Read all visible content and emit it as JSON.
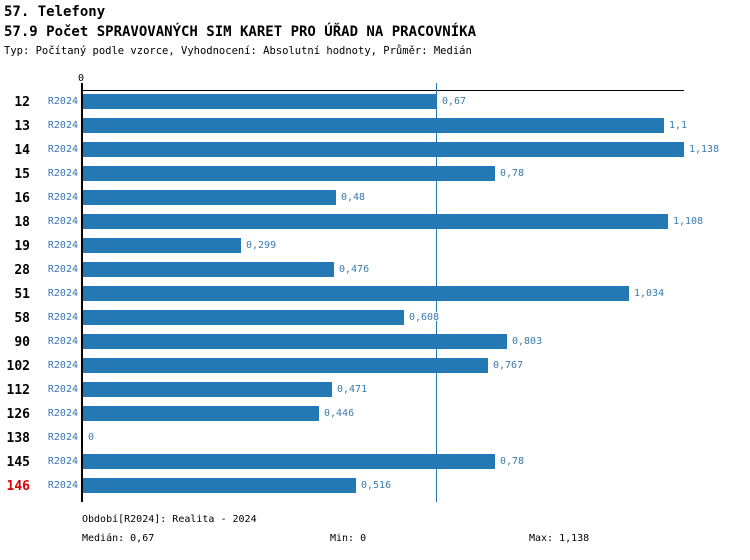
{
  "header": {
    "section_title": "57. Telefony",
    "chart_title": "57.9 Počet SPRAVOVANÝCH SIM KARET PRO ÚŘAD NA PRACOVNÍKA",
    "subtitle": "Typ: Počítaný podle vzorce, Vyhodnocení: Absolutní hodnoty, Průměr: Medián"
  },
  "axis": {
    "origin_label": "0"
  },
  "chart_data": {
    "type": "bar",
    "orientation": "horizontal",
    "title": "57.9 Počet SPRAVOVANÝCH SIM KARET PRO ÚŘAD NA PRACOVNÍKA",
    "categories": [
      "12",
      "13",
      "14",
      "15",
      "16",
      "18",
      "19",
      "28",
      "51",
      "58",
      "90",
      "102",
      "112",
      "126",
      "138",
      "145",
      "146"
    ],
    "period_label": "R2024",
    "values": [
      0.67,
      1.1,
      1.138,
      0.78,
      0.48,
      1.108,
      0.299,
      0.476,
      1.034,
      0.608,
      0.803,
      0.767,
      0.471,
      0.446,
      0,
      0.78,
      0.516
    ],
    "value_labels": [
      "0,67",
      "1,1",
      "1,138",
      "0,78",
      "0,48",
      "1,108",
      "0,299",
      "0,476",
      "1,034",
      "0,608",
      "0,803",
      "0,767",
      "0,471",
      "0,446",
      "0",
      "0,78",
      "0,516"
    ],
    "xlim": [
      0,
      1.138
    ],
    "median": 0.67,
    "median_line": true,
    "highlighted_category": "146",
    "grid": false,
    "legend": "none",
    "bar_color": "#2478b4",
    "median_line_color": "#2478b4",
    "period_color": "#3274b2",
    "value_color": "#3a7aad",
    "highlight_color": "#dd0000"
  },
  "footer": {
    "period_info": "Období[R2024]: Realita - 2024",
    "median_label": "Medián: 0,67",
    "min_label": "Min: 0",
    "max_label": "Max: 1,138"
  }
}
